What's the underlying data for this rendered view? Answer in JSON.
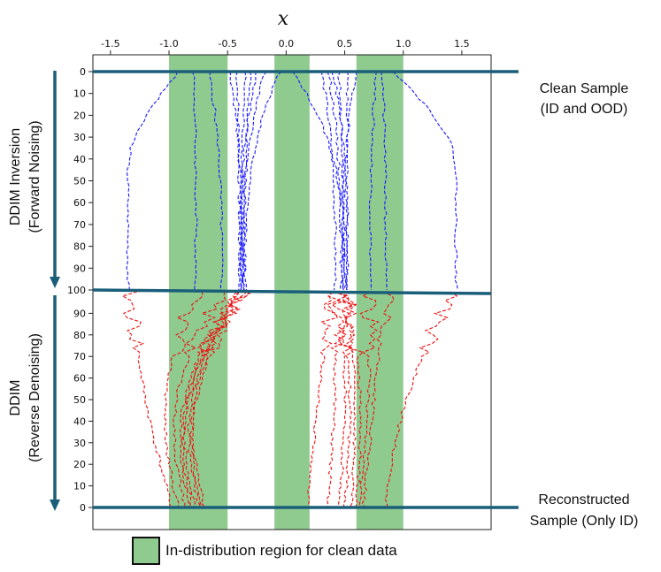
{
  "chart_data": {
    "type": "line",
    "x_axis_title": "x",
    "x_ticks": [
      -1.5,
      -1.0,
      -0.5,
      0.0,
      0.5,
      1.0,
      1.5
    ],
    "x_tick_labels": [
      "-1.5",
      "-1.0",
      "-0.5",
      "0.0",
      "0.5",
      "1.0",
      "1.5"
    ],
    "xlim": [
      -1.65,
      1.75
    ],
    "upper_y_ticks": [
      0,
      10,
      20,
      30,
      40,
      50,
      60,
      70,
      80,
      90,
      100
    ],
    "upper_y_tick_labels": [
      "0",
      "10",
      "20",
      "30",
      "40",
      "50",
      "60",
      "70",
      "80",
      "90",
      "100"
    ],
    "lower_y_ticks": [
      90,
      80,
      70,
      60,
      50,
      40,
      30,
      20,
      10,
      0
    ],
    "lower_y_tick_labels": [
      "90",
      "80",
      "70",
      "60",
      "50",
      "40",
      "30",
      "20",
      "10",
      "0"
    ],
    "id_regions": [
      [
        -1.0,
        -0.5
      ],
      [
        -0.1,
        0.2
      ],
      [
        0.6,
        1.0
      ]
    ],
    "region_color": "#8fca8f",
    "inversion_color": "#1a1aff",
    "denoise_color": "#ee1111",
    "divider_color": "#1a5f7a",
    "inversion_series": [
      {
        "start": -0.92,
        "end": -1.35,
        "shape": "bulge"
      },
      {
        "start": -0.79,
        "end": -0.77,
        "shape": "drift"
      },
      {
        "start": -0.66,
        "end": -0.55,
        "shape": "drift"
      },
      {
        "start": -0.48,
        "end": -0.38,
        "shape": "drift"
      },
      {
        "start": -0.42,
        "end": -0.4,
        "shape": "drift"
      },
      {
        "start": -0.35,
        "end": -0.38,
        "shape": "drift"
      },
      {
        "start": -0.3,
        "end": -0.36,
        "shape": "drift"
      },
      {
        "start": -0.25,
        "end": -0.39,
        "shape": "drift"
      },
      {
        "start": -0.18,
        "end": -0.37,
        "shape": "drift"
      },
      {
        "start": -0.05,
        "end": -0.35,
        "shape": "drift"
      },
      {
        "start": 0.05,
        "end": 0.5,
        "shape": "drift"
      },
      {
        "start": 0.3,
        "end": 0.42,
        "shape": "drift"
      },
      {
        "start": 0.36,
        "end": 0.47,
        "shape": "drift"
      },
      {
        "start": 0.4,
        "end": 0.52,
        "shape": "drift"
      },
      {
        "start": 0.45,
        "end": 0.49,
        "shape": "drift"
      },
      {
        "start": 0.52,
        "end": 0.52,
        "shape": "drift"
      },
      {
        "start": 0.6,
        "end": 0.48,
        "shape": "drift"
      },
      {
        "start": 0.77,
        "end": 0.72,
        "shape": "drift"
      },
      {
        "start": 0.82,
        "end": 0.85,
        "shape": "drift"
      },
      {
        "start": 0.92,
        "end": 1.45,
        "shape": "bulge"
      }
    ],
    "denoise_series": [
      {
        "start": -1.35,
        "end": -0.98,
        "cluster": "left"
      },
      {
        "start": -0.77,
        "end": -0.92,
        "cluster": "left"
      },
      {
        "start": -0.55,
        "end": -0.86,
        "cluster": "left"
      },
      {
        "start": -0.4,
        "end": -0.82,
        "cluster": "left"
      },
      {
        "start": -0.38,
        "end": -0.8,
        "cluster": "left"
      },
      {
        "start": -0.37,
        "end": -0.78,
        "cluster": "left"
      },
      {
        "start": -0.39,
        "end": -0.74,
        "cluster": "left"
      },
      {
        "start": -0.35,
        "end": -0.72,
        "cluster": "left"
      },
      {
        "start": -0.36,
        "end": -0.7,
        "cluster": "left"
      },
      {
        "start": 0.4,
        "end": 0.18,
        "cluster": "right"
      },
      {
        "start": 0.42,
        "end": 0.35,
        "cluster": "right"
      },
      {
        "start": 0.46,
        "end": 0.45,
        "cluster": "right"
      },
      {
        "start": 0.48,
        "end": 0.5,
        "cluster": "right"
      },
      {
        "start": 0.5,
        "end": 0.55,
        "cluster": "right"
      },
      {
        "start": 0.52,
        "end": 0.6,
        "cluster": "right"
      },
      {
        "start": 0.72,
        "end": 0.63,
        "cluster": "right"
      },
      {
        "start": 0.85,
        "end": 0.66,
        "cluster": "right"
      },
      {
        "start": 1.45,
        "end": 0.85,
        "cluster": "right"
      }
    ]
  },
  "labels": {
    "top_right_line1": "Clean Sample",
    "top_right_line2": "(ID and OOD)",
    "bottom_right_line1": "Reconstructed",
    "bottom_right_line2": "Sample (Only ID)",
    "left_top_line1": "DDIM Inversion",
    "left_top_line2": "(Forward Noising)",
    "left_bottom_line1": "DDIM",
    "left_bottom_line2": "(Reverse Denoising)",
    "legend": "In-distribution region for clean data"
  }
}
